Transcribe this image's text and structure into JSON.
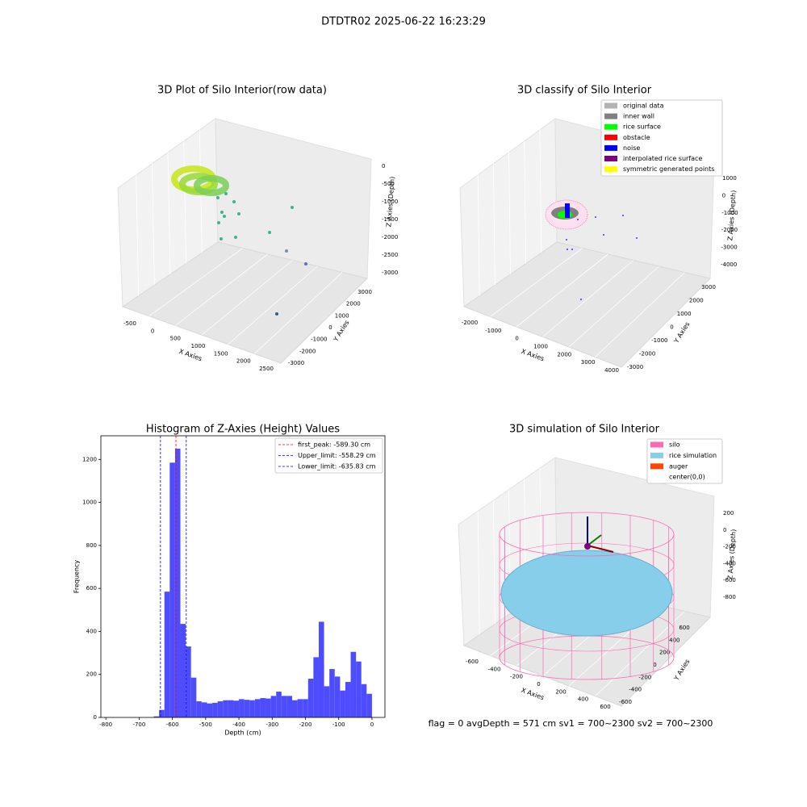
{
  "title": "DTDTR02 2025-06-22 16:23:29",
  "status_text": "flag = 0     avgDepth = 571 cm  sv1 = 700~2300  sv2 = 700~2300",
  "chart_data": [
    {
      "type": "scatter3d",
      "title": "3D Plot of Silo Interior(row data)",
      "xlabel": "X Axies",
      "ylabel": "Y Axies",
      "zlabel": "Z Axies (Depth)",
      "xticks": [
        -500,
        0,
        500,
        1000,
        1500,
        2000,
        2500
      ],
      "yticks": [
        -3000,
        -2000,
        -1000,
        0,
        1000,
        2000,
        3000
      ],
      "zticks": [
        0,
        -500,
        -1000,
        -1500,
        -2000,
        -2500,
        -3000
      ]
    },
    {
      "type": "scatter3d",
      "title": "3D classify of Silo Interior",
      "xlabel": "X Axies",
      "ylabel": "Y Axies",
      "zlabel": "Z Axies (Depth)",
      "xticks": [
        -2000,
        -1000,
        0,
        1000,
        2000,
        3000,
        4000
      ],
      "yticks": [
        -3000,
        -2000,
        -1000,
        0,
        1000,
        2000,
        3000
      ],
      "zticks": [
        1000,
        0,
        -1000,
        -2000,
        -3000,
        -4000
      ],
      "legend": [
        {
          "name": "original data",
          "color": "#b3b3b3"
        },
        {
          "name": "inner wall",
          "color": "#808080"
        },
        {
          "name": "rice surface",
          "color": "#00ff00"
        },
        {
          "name": "obstacle",
          "color": "#ff0000"
        },
        {
          "name": "noise",
          "color": "#0000ff"
        },
        {
          "name": "interpolated rice surface",
          "color": "#800080"
        },
        {
          "name": "symmetric generated points",
          "color": "#ffff00"
        }
      ]
    },
    {
      "type": "histogram",
      "title": "Histogram of Z-Axies (Height) Values",
      "xlabel": "Depth (cm)",
      "ylabel": "Frequency",
      "color": "#4d4dff",
      "bins": [
        -656,
        -640,
        -624,
        -608,
        -592,
        -576,
        -560,
        -544,
        -528,
        -512,
        -496,
        -480,
        -464,
        -448,
        -432,
        -416,
        -400,
        -384,
        -368,
        -352,
        -336,
        -320,
        -304,
        -288,
        -272,
        -256,
        -240,
        -224,
        -208,
        -192,
        -176,
        -160,
        -144,
        -128,
        -112,
        -96,
        -80,
        -64,
        -48,
        -32,
        -16,
        0
      ],
      "counts": [
        5,
        35,
        585,
        1185,
        1250,
        435,
        330,
        185,
        75,
        70,
        65,
        68,
        75,
        80,
        80,
        78,
        85,
        82,
        80,
        85,
        90,
        88,
        100,
        120,
        100,
        100,
        80,
        85,
        85,
        180,
        280,
        445,
        145,
        225,
        190,
        125,
        165,
        305,
        260,
        155,
        110
      ],
      "xlim": [
        -815,
        39
      ],
      "ylim": [
        0,
        1310
      ],
      "xticks": [
        -800,
        -700,
        -600,
        -500,
        -400,
        -300,
        -200,
        -100,
        0
      ],
      "yticks": [
        0,
        200,
        400,
        600,
        800,
        1000,
        1200
      ],
      "reference_lines": [
        {
          "name": "first_peak: -589.30 cm",
          "value": -589.3,
          "color": "#ff0000"
        },
        {
          "name": "Upper_limit: -558.29 cm",
          "value": -558.29,
          "color": "#0000ff"
        },
        {
          "name": "Lower_limit: -635.83 cm",
          "value": -635.83,
          "color": "#0000ff"
        }
      ],
      "legend_position": "upper right"
    },
    {
      "type": "scatter3d",
      "title": "3D simulation of Silo Interior",
      "xlabel": "X Axies",
      "ylabel": "Y Axies",
      "zlabel": "Z Axies (Depth)",
      "xticks": [
        -600,
        -400,
        -200,
        0,
        200,
        400,
        600
      ],
      "yticks": [
        -600,
        -400,
        -200,
        0,
        200,
        400,
        600
      ],
      "zticks": [
        200,
        0,
        -200,
        -400,
        -600,
        -800
      ],
      "legend": [
        {
          "name": "silo",
          "color": "#ff69b4"
        },
        {
          "name": "rice simulation",
          "color": "#87ceeb"
        },
        {
          "name": "auger",
          "color": "#ff4500"
        },
        {
          "name": "center(0,0)",
          "color": "#ffffff"
        }
      ]
    }
  ]
}
